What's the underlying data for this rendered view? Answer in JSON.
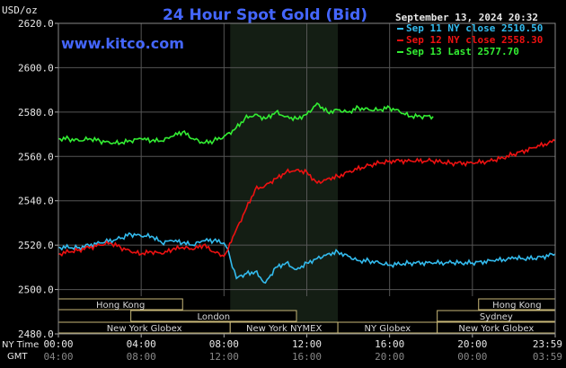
{
  "header": {
    "unit": "USD/oz",
    "title": "24 Hour Spot Gold (Bid)",
    "site": "www.kitco.com",
    "timestamp": "September 13, 2024 20:32"
  },
  "legend": [
    {
      "label": "Sep 11 NY close 2510.50",
      "color": "#33bbee"
    },
    {
      "label": "Sep 12 NY close 2558.30",
      "color": "#ee1111"
    },
    {
      "label": "Sep 13 Last 2577.70",
      "color": "#33ee33"
    }
  ],
  "chart_data": {
    "type": "line",
    "ylim": [
      2480,
      2620
    ],
    "yticks": [
      "2620.0",
      "2600.0",
      "2580.0",
      "2560.0",
      "2540.0",
      "2520.0",
      "2500.0",
      "2480.0"
    ],
    "xlim": [
      0,
      24
    ],
    "xticks_ny": [
      "00:00",
      "04:00",
      "08:00",
      "12:00",
      "16:00",
      "20:00",
      "23:59"
    ],
    "xticks_gmt": [
      "04:00",
      "08:00",
      "12:00",
      "16:00",
      "20:00",
      "00:00",
      "03:59"
    ],
    "xaxis_labels": {
      "ny": "NY Time",
      "gmt": "GMT"
    },
    "highlight_hours": [
      8.3,
      13.5
    ],
    "series": [
      {
        "name": "Sep 11 NY close 2510.50",
        "color": "#33bbee",
        "x": [
          0,
          1,
          2,
          3,
          3.5,
          4,
          4.5,
          5,
          5.5,
          6,
          6.5,
          7,
          7.5,
          8,
          8.2,
          8.4,
          8.6,
          9,
          9.5,
          10,
          10.5,
          11,
          11.5,
          12,
          12.5,
          13,
          13.5,
          14,
          14.5,
          15,
          15.5,
          16,
          17,
          18,
          19,
          20,
          21,
          22,
          23,
          24
        ],
        "y": [
          2519,
          2519,
          2521,
          2523,
          2525,
          2524,
          2524,
          2521,
          2522,
          2521,
          2520,
          2522,
          2522,
          2521,
          2518,
          2510,
          2505,
          2507,
          2508,
          2503,
          2510,
          2512,
          2509,
          2512,
          2514,
          2516,
          2517,
          2515,
          2513,
          2513,
          2512,
          2511,
          2512,
          2512,
          2512,
          2512,
          2513,
          2514,
          2514,
          2516
        ]
      },
      {
        "name": "Sep 12 NY close 2558.30",
        "color": "#ee1111",
        "x": [
          0,
          1,
          2,
          2.5,
          3,
          3.5,
          4,
          4.5,
          5,
          5.5,
          6,
          6.5,
          7,
          7.5,
          8,
          8.2,
          8.5,
          9,
          9.5,
          10,
          10.5,
          11,
          11.5,
          12,
          12.5,
          13,
          13.5,
          14,
          15,
          16,
          17,
          18,
          19,
          20,
          21,
          22,
          23,
          24
        ],
        "y": [
          2516,
          2518,
          2520,
          2521,
          2519,
          2517,
          2516,
          2517,
          2516,
          2518,
          2519,
          2518,
          2520,
          2517,
          2515,
          2518,
          2525,
          2535,
          2545,
          2547,
          2550,
          2553,
          2554,
          2553,
          2548,
          2550,
          2551,
          2553,
          2556,
          2558,
          2558,
          2558,
          2557,
          2557,
          2558,
          2561,
          2564,
          2567
        ]
      },
      {
        "name": "Sep 13 Last 2577.70",
        "color": "#33ee33",
        "x": [
          0,
          0.5,
          1,
          1.5,
          2,
          2.5,
          3,
          3.5,
          4,
          4.5,
          5,
          5.5,
          6,
          6.5,
          7,
          7.5,
          8,
          8.5,
          9,
          9.5,
          10,
          10.5,
          11,
          11.5,
          12,
          12.5,
          13,
          13.5,
          14,
          14.5,
          15,
          15.5,
          16,
          16.5,
          17,
          17.5,
          18.1
        ],
        "y": [
          2568,
          2568,
          2567,
          2568,
          2567,
          2566,
          2566,
          2567,
          2568,
          2567,
          2567,
          2569,
          2571,
          2568,
          2566,
          2567,
          2569,
          2572,
          2577,
          2579,
          2577,
          2580,
          2578,
          2577,
          2579,
          2584,
          2580,
          2581,
          2580,
          2582,
          2581,
          2581,
          2582,
          2580,
          2578,
          2578,
          2578
        ]
      }
    ]
  },
  "sessions": {
    "rows": [
      [
        {
          "label": "Hong Kong",
          "start": 0,
          "end": 6.0
        },
        {
          "label": "Hong Kong",
          "start": 20.3,
          "end": 24
        }
      ],
      [
        {
          "label": "London",
          "start": 3.5,
          "end": 11.5
        },
        {
          "label": "Sydney",
          "start": 18.3,
          "end": 24
        }
      ],
      [
        {
          "label": "New York Globex",
          "start": 0,
          "end": 8.3
        },
        {
          "label": "New York NYMEX",
          "start": 8.3,
          "end": 13.5
        },
        {
          "label": "NY Globex",
          "start": 13.5,
          "end": 18.3
        },
        {
          "label": "New York Globex",
          "start": 18.3,
          "end": 24
        }
      ]
    ]
  }
}
